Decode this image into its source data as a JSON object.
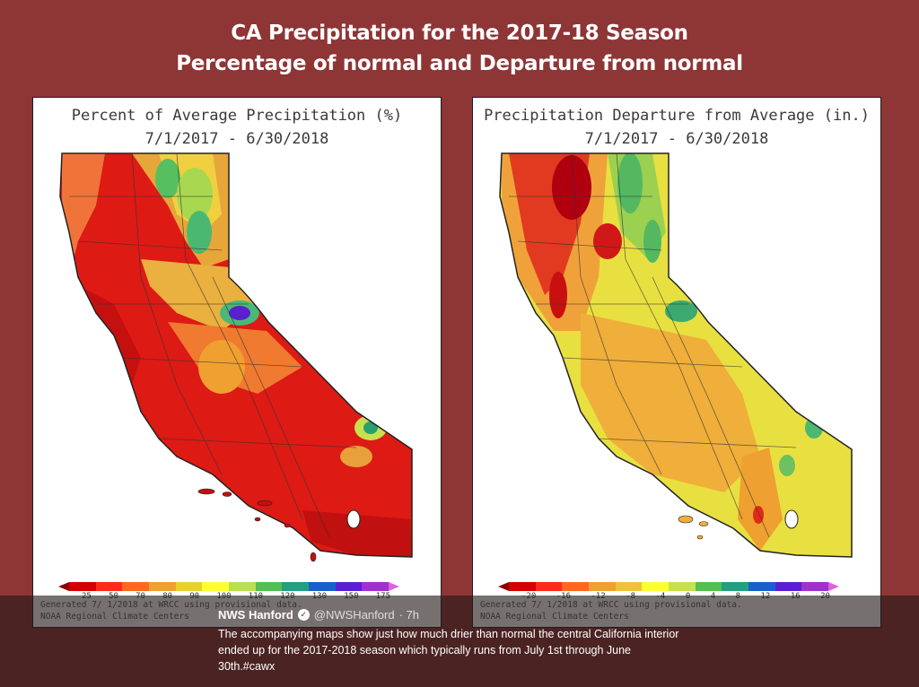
{
  "slide": {
    "title_line1": "CA Precipitation for the 2017-18 Season",
    "title_line2": "Percentage of normal and Departure from normal"
  },
  "maps": {
    "left": {
      "title": "Percent of Average Precipitation (%)",
      "date_range": "7/1/2017 - 6/30/2018",
      "legend_labels": [
        "25",
        "50",
        "70",
        "80",
        "90",
        "100",
        "110",
        "120",
        "130",
        "150",
        "175"
      ],
      "legend_colors": [
        "#a00000",
        "#d40000",
        "#ff2a1a",
        "#ff6a1a",
        "#f0a030",
        "#e8d030",
        "#ffff33",
        "#b8e050",
        "#50c050",
        "#20a080",
        "#1860d0",
        "#5a20d0",
        "#a030d0",
        "#e060e0"
      ],
      "footer_line1": "Generated 7/ 1/2018 at WRCC using provisional data.",
      "footer_line2": "NOAA Regional Climate Centers"
    },
    "right": {
      "title": "Precipitation Departure from Average (in.)",
      "date_range": "7/1/2017 - 6/30/2018",
      "legend_labels": [
        "-20",
        "-16",
        "-12",
        "-8",
        "-4",
        "0",
        "4",
        "8",
        "12",
        "16",
        "20"
      ],
      "legend_colors": [
        "#a00000",
        "#d40000",
        "#ff2a1a",
        "#ff6a1a",
        "#f0a030",
        "#f0c040",
        "#ffff33",
        "#c8e050",
        "#50c050",
        "#20a080",
        "#1860d0",
        "#5a20d0",
        "#a030d0",
        "#e060e0"
      ],
      "footer_line1": "Generated 7/ 1/2018 at WRCC using provisional data.",
      "footer_line2": "NOAA Regional Climate Centers"
    }
  },
  "tweet": {
    "name": "NWS Hanford",
    "handle": "@NWSHanford",
    "time": "· 7h",
    "text": "The accompanying maps show just how much drier than normal the central California interior ended up for the 2017-2018 season which typically runs from July 1st through June 30th.#cawx"
  }
}
